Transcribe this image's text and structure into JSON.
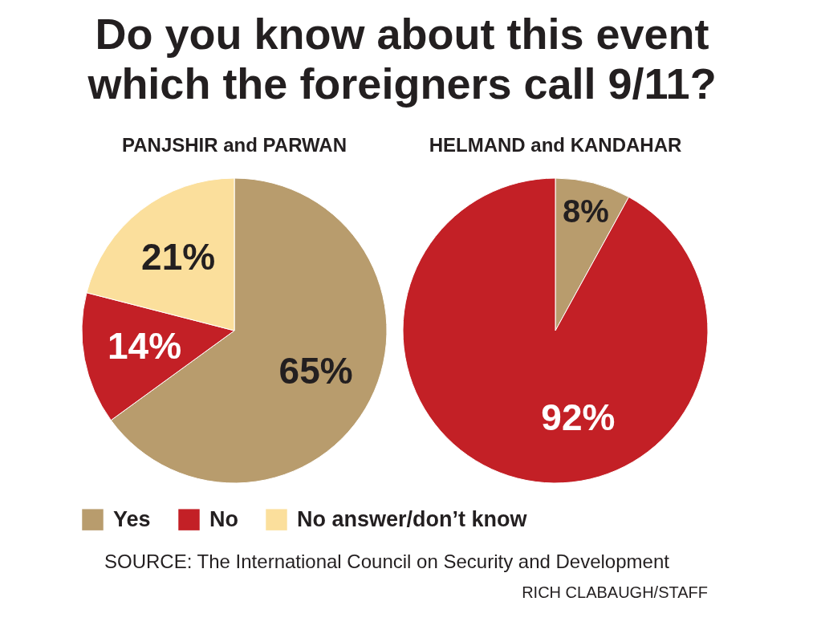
{
  "chart_data": {
    "type": "pie",
    "title": "Do you know about this event which the foreigners call 9/11?",
    "categories": [
      "Yes",
      "No",
      "No answer/don’t know"
    ],
    "colors": [
      "#b89c6d",
      "#c32026",
      "#fbdf9c"
    ],
    "series": [
      {
        "name": "PANJSHIR and PARWAN",
        "values": [
          65,
          14,
          21
        ],
        "value_labels": [
          "65%",
          "14%",
          "21%"
        ]
      },
      {
        "name": "HELMAND and KANDAHAR",
        "values": [
          8,
          92,
          null
        ],
        "value_labels": [
          "8%",
          "92%",
          null
        ]
      }
    ],
    "legend": "bottom",
    "annotations": [
      "SOURCE: The International Council on Security and Development",
      "RICH CLABAUGH/STAFF"
    ]
  }
}
